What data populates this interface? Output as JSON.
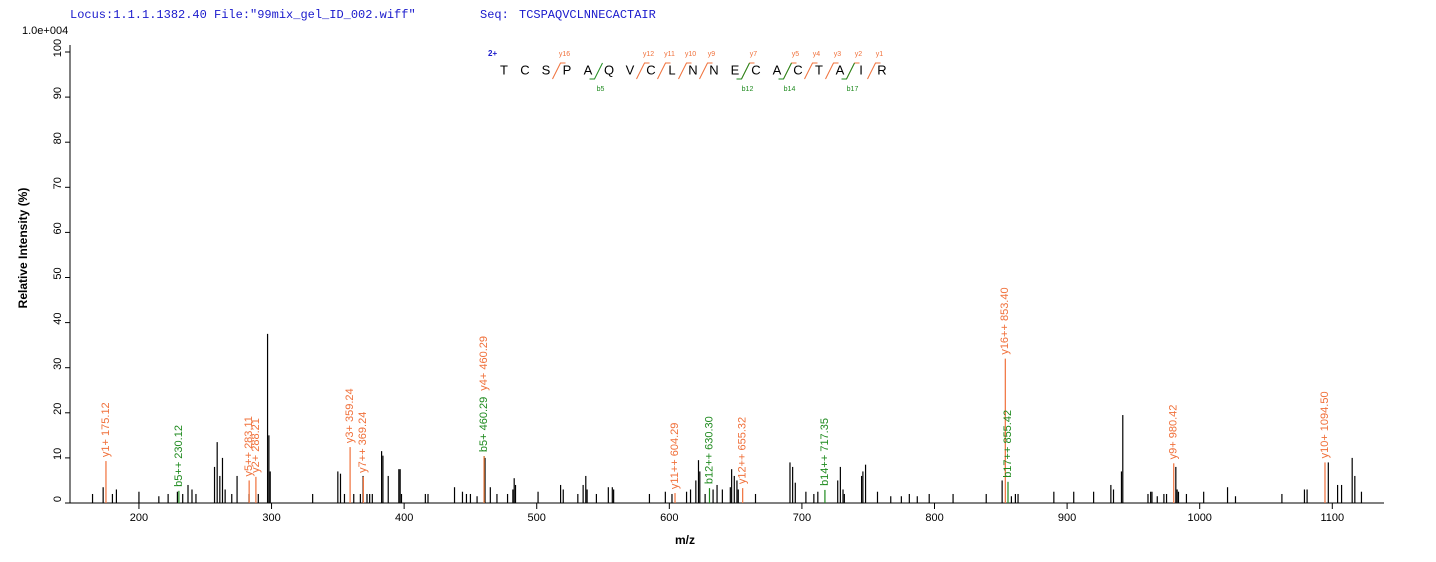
{
  "chart_data": {
    "type": "spectrum",
    "header": {
      "locus": "Locus:1.1.1.1382.40 File:\"99mix_gel_ID_002.wiff\"",
      "seq_label": "Seq:",
      "sequence": "TCSPAQVCLNNECACTAIR"
    },
    "scale_label": "1.0e+004",
    "x_label": "m/z",
    "y_label": "Relative  Intensity (%)",
    "xlim": [
      148,
      1139
    ],
    "ylim": [
      0,
      100
    ],
    "xticks": [
      200,
      300,
      400,
      500,
      600,
      700,
      800,
      900,
      1000,
      1100
    ],
    "yticks": [
      0,
      10,
      20,
      30,
      40,
      50,
      60,
      70,
      80,
      90,
      100
    ],
    "peak_color": "#000000",
    "peaks": {
      "x": [
        165,
        173,
        180,
        183,
        200,
        215,
        222,
        229,
        233,
        237,
        240,
        243,
        257,
        259,
        261,
        263,
        265,
        270,
        274,
        283,
        290,
        297,
        298,
        299,
        331,
        350,
        352,
        355,
        362,
        367,
        369,
        372,
        374,
        376,
        383,
        384,
        388,
        396,
        397,
        398,
        416,
        418,
        438,
        444,
        447,
        450,
        455,
        461,
        465,
        470,
        478,
        482,
        483,
        484,
        501,
        518,
        520,
        531,
        535,
        537,
        538,
        545,
        554,
        557,
        558,
        585,
        597,
        602,
        613,
        616,
        620,
        622,
        623,
        627,
        633,
        636,
        640,
        646,
        647,
        649,
        651,
        652,
        665,
        691,
        693,
        695,
        703,
        709,
        712,
        727,
        729,
        731,
        732,
        745,
        746,
        748,
        757,
        767,
        775,
        781,
        787,
        796,
        814,
        839,
        851,
        858,
        861,
        863,
        890,
        905,
        920,
        933,
        935,
        941,
        942,
        961,
        963,
        964,
        968,
        973,
        975,
        982,
        983,
        984,
        990,
        1003,
        1021,
        1027,
        1062,
        1079,
        1081,
        1097,
        1104,
        1107,
        1115,
        1117,
        1122
      ],
      "values": [
        2,
        3.5,
        2,
        3,
        2.5,
        1.5,
        2,
        2.5,
        2,
        4,
        3,
        2,
        8,
        13.5,
        6,
        10,
        3,
        2,
        6,
        2,
        2,
        37.5,
        15,
        7,
        2,
        7,
        6.5,
        2,
        2,
        2,
        6,
        2,
        2,
        2,
        11.5,
        10.5,
        6,
        7.5,
        7.5,
        2,
        2,
        2,
        3.5,
        2.5,
        2,
        2,
        1.5,
        10,
        3.5,
        2,
        2,
        3,
        5.5,
        4,
        2.5,
        4,
        3,
        2,
        4,
        6,
        3,
        2,
        3.5,
        3.5,
        3,
        2,
        2.5,
        2,
        2.5,
        3,
        5,
        9.5,
        7,
        2,
        3,
        4,
        3,
        3.5,
        7.5,
        6,
        5,
        3,
        2,
        9,
        8,
        4.5,
        2.5,
        2,
        2.5,
        5,
        8,
        3,
        2,
        6,
        7,
        8.5,
        2.5,
        1.5,
        1.5,
        2,
        1.5,
        2,
        2,
        2,
        5,
        1.5,
        2,
        2,
        2.5,
        2.5,
        2.5,
        4,
        3,
        7,
        19.5,
        2,
        2.5,
        2.5,
        1.5,
        2,
        2,
        8,
        3,
        2.5,
        2,
        2.5,
        3.5,
        1.5,
        2,
        3,
        3,
        9,
        4,
        4,
        10,
        6,
        2.5
      ]
    },
    "annotations": [
      {
        "label": "y1+ 175.12",
        "x": 175.12,
        "value": 9.3,
        "color": "#f0703a"
      },
      {
        "label": "b5++ 230.12",
        "x": 230.12,
        "value": 2.7,
        "color": "#1e8a1e"
      },
      {
        "label": "y5++ 283.11",
        "x": 283.11,
        "value": 5,
        "color": "#f0703a"
      },
      {
        "label": "y2+ 288.21",
        "x": 288.21,
        "value": 5.8,
        "color": "#f0703a"
      },
      {
        "label": "y3+ 359.24",
        "x": 359.24,
        "value": 12.4,
        "color": "#f0703a"
      },
      {
        "label": "y7++ 369.24",
        "x": 369.24,
        "value": 5.8,
        "color": "#f0703a"
      },
      {
        "label": "b5+ 460.29",
        "x": 460.29,
        "value": 10.4,
        "color": "#1e8a1e"
      },
      {
        "label": "y4+ 460.29",
        "x": 460.29,
        "value": 10.4,
        "color": "#f0703a"
      },
      {
        "label": "y11++ 604.29",
        "x": 604.29,
        "value": 2.2,
        "color": "#f0703a"
      },
      {
        "label": "b12++ 630.30",
        "x": 630.3,
        "value": 3.3,
        "color": "#1e8a1e"
      },
      {
        "label": "y12++ 655.32",
        "x": 655.32,
        "value": 3.3,
        "color": "#f0703a"
      },
      {
        "label": "b14++ 717.35",
        "x": 717.35,
        "value": 2.9,
        "color": "#1e8a1e"
      },
      {
        "label": "y16++ 853.40",
        "x": 853.4,
        "value": 32,
        "color": "#f0703a"
      },
      {
        "label": "b17++ 855.42",
        "x": 855.42,
        "value": 4.7,
        "color": "#1e8a1e"
      },
      {
        "label": "y9+ 980.42",
        "x": 980.42,
        "value": 8.8,
        "color": "#f0703a"
      },
      {
        "label": "y10+ 1094.50",
        "x": 1094.5,
        "value": 9,
        "color": "#f0703a"
      }
    ],
    "sequence_map": {
      "charge": "2+",
      "residues": [
        "T",
        "C",
        "S",
        "P",
        "A",
        "Q",
        "V",
        "C",
        "L",
        "N",
        "N",
        "E",
        "C",
        "A",
        "C",
        "T",
        "A",
        "I",
        "R"
      ],
      "y_ions": [
        "y16",
        "y12",
        "y11",
        "y10",
        "y9",
        "y7",
        "y5",
        "y4",
        "y3",
        "y2",
        "y1"
      ],
      "b_ions": [
        "b5",
        "b12",
        "b14",
        "b17"
      ],
      "y_color": "#f0703a",
      "b_color": "#1e8a1e",
      "charge_color": "#1a1acc"
    }
  }
}
